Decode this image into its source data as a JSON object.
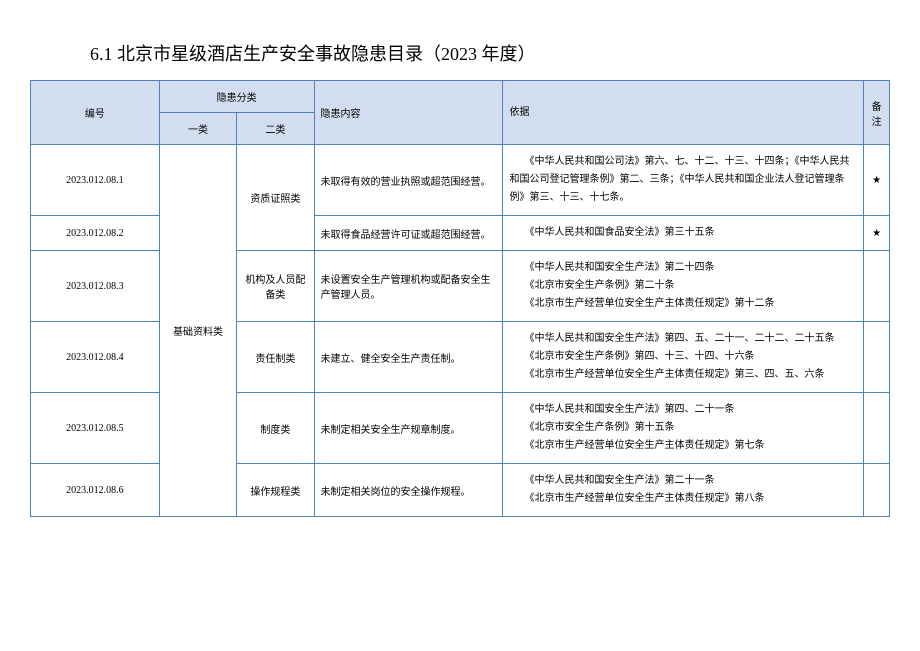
{
  "title": "6.1 北京市星级酒店生产安全事故隐患目录（2023 年度）",
  "header": {
    "id": "编号",
    "cat_group": "隐患分类",
    "cat1": "一类",
    "cat2": "二类",
    "desc": "隐患内容",
    "basis": "依据",
    "note": "备注"
  },
  "cat1_label": "基础资料类",
  "rows": [
    {
      "id": "2023.012.08.1",
      "cat2": "资质证照类",
      "cat2_rowspan": 2,
      "desc": "未取得有效的营业执照或超范围经营。",
      "basis": "　　《中华人民共和国公司法》第六、七、十二、十三、十四条；《中华人民共和国公司登记管理条例》第二、三条；《中华人民共和国企业法人登记管理条例》第三、十三、十七条。",
      "note": "★"
    },
    {
      "id": "2023.012.08.2",
      "desc": "未取得食品经营许可证或超范围经营。",
      "basis": "　　《中华人民共和国食品安全法》第三十五条",
      "note": "★"
    },
    {
      "id": "2023.012.08.3",
      "cat2": "机构及人员配备类",
      "cat2_rowspan": 1,
      "desc": "未设置安全生产管理机构或配备安全生产管理人员。",
      "basis": "　　《中华人民共和国安全生产法》第二十四条\n　　《北京市安全生产条例》第二十条\n　　《北京市生产经营单位安全生产主体责任规定》第十二条",
      "note": ""
    },
    {
      "id": "2023.012.08.4",
      "cat2": "责任制类",
      "cat2_rowspan": 1,
      "desc": "未建立、健全安全生产责任制。",
      "basis": "　　《中华人民共和国安全生产法》第四、五、二十一、二十二、二十五条\n　　《北京市安全生产条例》第四、十三、十四、十六条\n　　《北京市生产经营单位安全生产主体责任规定》第三、四、五、六条",
      "note": ""
    },
    {
      "id": "2023.012.08.5",
      "cat2": "制度类",
      "cat2_rowspan": 1,
      "desc": "未制定相关安全生产规章制度。",
      "basis": "　　《中华人民共和国安全生产法》第四、二十一条\n　　《北京市安全生产条例》第十五条\n　　《北京市生产经营单位安全生产主体责任规定》第七条",
      "note": ""
    },
    {
      "id": "2023.012.08.6",
      "cat2": "操作规程类",
      "cat2_rowspan": 1,
      "desc": "未制定相关岗位的安全操作规程。",
      "basis": "　　《中华人民共和国安全生产法》第二十一条\n　　《北京市生产经营单位安全生产主体责任规定》第八条",
      "note": ""
    }
  ],
  "colors": {
    "border": "#4e81bd",
    "header_bg": "#d2deef",
    "text": "#000000",
    "page_bg": "#ffffff"
  }
}
